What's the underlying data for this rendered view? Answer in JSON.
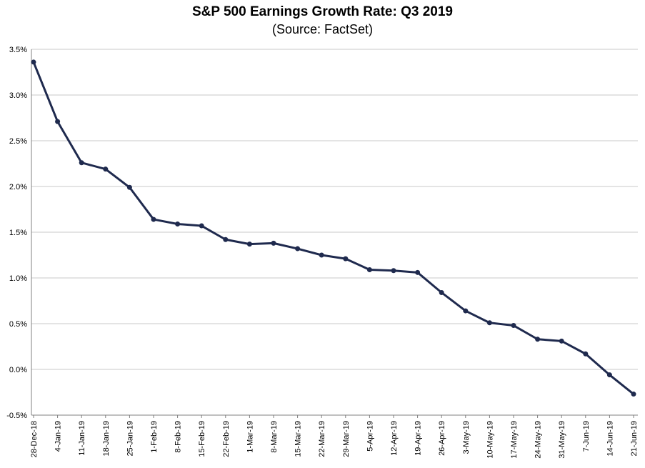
{
  "chart_data": {
    "type": "line",
    "title": "S&P 500 Earnings Growth Rate: Q3 2019",
    "subtitle": "(Source: FactSet)",
    "xlabel": "",
    "ylabel": "",
    "ylim": [
      -0.5,
      3.5
    ],
    "yticks": [
      "3.5%",
      "3.0%",
      "2.5%",
      "2.0%",
      "1.5%",
      "1.0%",
      "0.5%",
      "0.0%",
      "-0.5%"
    ],
    "ytick_values": [
      3.5,
      3.0,
      2.5,
      2.0,
      1.5,
      1.0,
      0.5,
      0.0,
      -0.5
    ],
    "grid": true,
    "legend": "none",
    "categories": [
      "28-Dec-18",
      "4-Jan-19",
      "11-Jan-19",
      "18-Jan-19",
      "25-Jan-19",
      "1-Feb-19",
      "8-Feb-19",
      "15-Feb-19",
      "22-Feb-19",
      "1-Mar-19",
      "8-Mar-19",
      "15-Mar-19",
      "22-Mar-19",
      "29-Mar-19",
      "5-Apr-19",
      "12-Apr-19",
      "19-Apr-19",
      "26-Apr-19",
      "3-May-19",
      "10-May-19",
      "17-May-19",
      "24-May-19",
      "31-May-19",
      "7-Jun-19",
      "14-Jun-19",
      "21-Jun-19"
    ],
    "series": [
      {
        "values": [
          3.36,
          2.71,
          2.26,
          2.19,
          1.99,
          1.64,
          1.59,
          1.57,
          1.42,
          1.37,
          1.38,
          1.32,
          1.25,
          1.21,
          1.09,
          1.08,
          1.06,
          0.84,
          0.64,
          0.51,
          0.48,
          0.33,
          0.31,
          0.17,
          -0.06,
          -0.27
        ],
        "color": "#1f2a4e"
      }
    ]
  }
}
